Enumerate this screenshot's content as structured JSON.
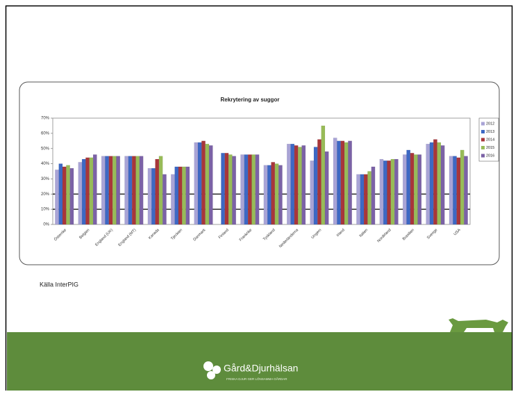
{
  "chart_data": {
    "type": "bar",
    "title": "Rekrytering av suggor",
    "categories": [
      "Österrike",
      "Belgien",
      "England (UK)",
      "England (MT)",
      "Kanada",
      "Tjeckien",
      "Danmark",
      "Finland",
      "Frankrike",
      "Tyskland",
      "Nederländerna",
      "Ungern",
      "Irland",
      "Italien",
      "Nordirland",
      "Brasilien",
      "Sverige",
      "USA"
    ],
    "series": [
      {
        "name": "2012",
        "color": "#a9a4d6",
        "values": [
          36,
          41,
          45,
          45,
          37,
          33,
          54,
          null,
          46,
          39,
          53,
          42,
          57,
          33,
          43,
          46,
          53,
          45
        ]
      },
      {
        "name": "2013",
        "color": "#3d68c4",
        "values": [
          40,
          43,
          45,
          45,
          37,
          38,
          54,
          47,
          46,
          39,
          53,
          51,
          55,
          33,
          42,
          49,
          54,
          45
        ]
      },
      {
        "name": "2014",
        "color": "#a8363a",
        "values": [
          38,
          44,
          45,
          45,
          43,
          38,
          55,
          47,
          46,
          41,
          52,
          56,
          55,
          33,
          42,
          47,
          56,
          44
        ]
      },
      {
        "name": "2015",
        "color": "#98bb58",
        "values": [
          39,
          44,
          45,
          45,
          45,
          38,
          53,
          46,
          46,
          40,
          51,
          65,
          54,
          35,
          43,
          46,
          54,
          49
        ]
      },
      {
        "name": "2016",
        "color": "#7b62a6",
        "values": [
          37,
          46,
          45,
          45,
          33,
          38,
          52,
          45,
          46,
          39,
          52,
          48,
          55,
          38,
          43,
          46,
          52,
          45
        ]
      }
    ],
    "ylim": [
      0,
      70
    ],
    "yticks": [
      {
        "value": 0,
        "label": "0%"
      },
      {
        "value": 10,
        "label": "10%"
      },
      {
        "value": 20,
        "label": "20%"
      },
      {
        "value": 30,
        "label": "30%"
      },
      {
        "value": 40,
        "label": "40%"
      },
      {
        "value": 50,
        "label": "50%"
      },
      {
        "value": 60,
        "label": "60%"
      },
      {
        "value": 70,
        "label": "70%"
      }
    ],
    "hlines": [
      10,
      20
    ],
    "grid": false,
    "legend": "right"
  },
  "source": "Källa InterPIG",
  "logo": {
    "name": "Gård&Djurhälsan",
    "tagline": "FRISKA DJUR GER LÖNSAMMA GÅRDAR"
  }
}
